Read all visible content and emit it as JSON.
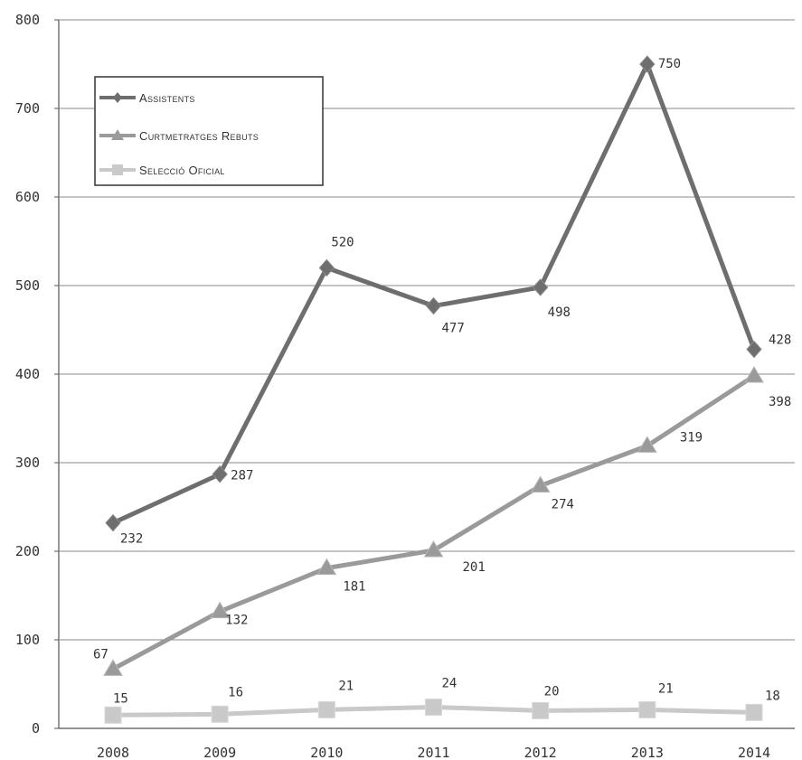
{
  "chart_data": {
    "type": "line",
    "categories": [
      "2008",
      "2009",
      "2010",
      "2011",
      "2012",
      "2013",
      "2014"
    ],
    "ylim": [
      0,
      800
    ],
    "yticks": [
      "0",
      "100",
      "200",
      "300",
      "400",
      "500",
      "600",
      "700",
      "800"
    ],
    "grid": true,
    "legend_position": "top-left",
    "series": [
      {
        "name": "Assistents",
        "values": [
          232,
          287,
          520,
          477,
          498,
          750,
          428
        ],
        "labels": [
          "232",
          "287",
          "520",
          "477",
          "498",
          "750",
          "428"
        ],
        "color": "#6e6e6e",
        "marker": "diamond"
      },
      {
        "name": "Curtmetratges Rebuts",
        "values": [
          67,
          132,
          181,
          201,
          274,
          319,
          398
        ],
        "labels": [
          "67",
          "132",
          "181",
          "201",
          "274",
          "319",
          "398"
        ],
        "color": "#9a9a9a",
        "marker": "triangle"
      },
      {
        "name": "Selecció Oficial",
        "values": [
          15,
          16,
          21,
          24,
          20,
          21,
          18
        ],
        "labels": [
          "15",
          "16",
          "21",
          "24",
          "20",
          "21",
          "18"
        ],
        "color": "#c9c9c9",
        "marker": "square"
      }
    ]
  }
}
